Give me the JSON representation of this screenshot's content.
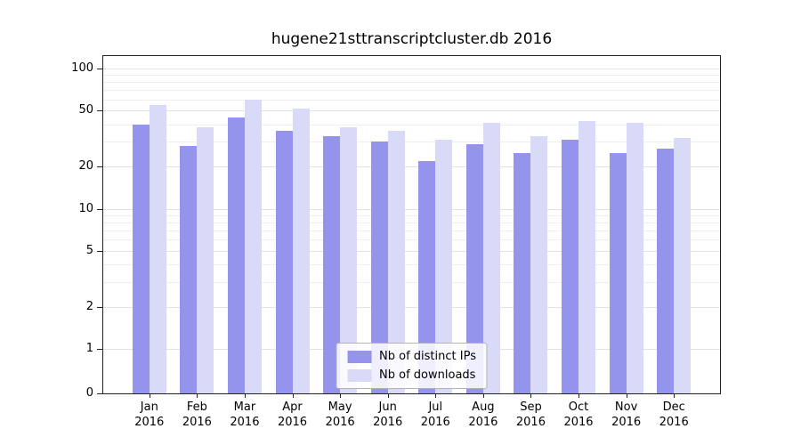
{
  "chart_data": {
    "type": "bar",
    "title": "hugene21sttranscriptcluster.db 2016",
    "year": "2016",
    "categories": [
      "Jan",
      "Feb",
      "Mar",
      "Apr",
      "May",
      "Jun",
      "Jul",
      "Aug",
      "Sep",
      "Oct",
      "Nov",
      "Dec"
    ],
    "series": [
      {
        "name": "Nb of distinct IPs",
        "slug": "distinct-ips",
        "color": "#9494ed",
        "values": [
          40,
          28,
          45,
          36,
          33,
          30,
          22,
          29,
          25,
          31,
          25,
          27
        ]
      },
      {
        "name": "Nb of downloads",
        "slug": "downloads",
        "color": "#d9d9f8",
        "values": [
          55,
          38,
          60,
          52,
          38,
          36,
          31,
          41,
          33,
          42,
          41,
          32
        ]
      }
    ],
    "yticks": [
      0,
      1,
      2,
      5,
      10,
      20,
      50,
      100
    ],
    "yscale": "log",
    "ylim": [
      0,
      126
    ],
    "xlabel": "",
    "ylabel": "",
    "grid": "horizontal-minor",
    "legend_position": "bottom-center-inside"
  },
  "colors": {
    "axis": "#222222",
    "grid_minor": "#efefef",
    "grid_major": "#e2e2e2",
    "background": "#ffffff"
  }
}
